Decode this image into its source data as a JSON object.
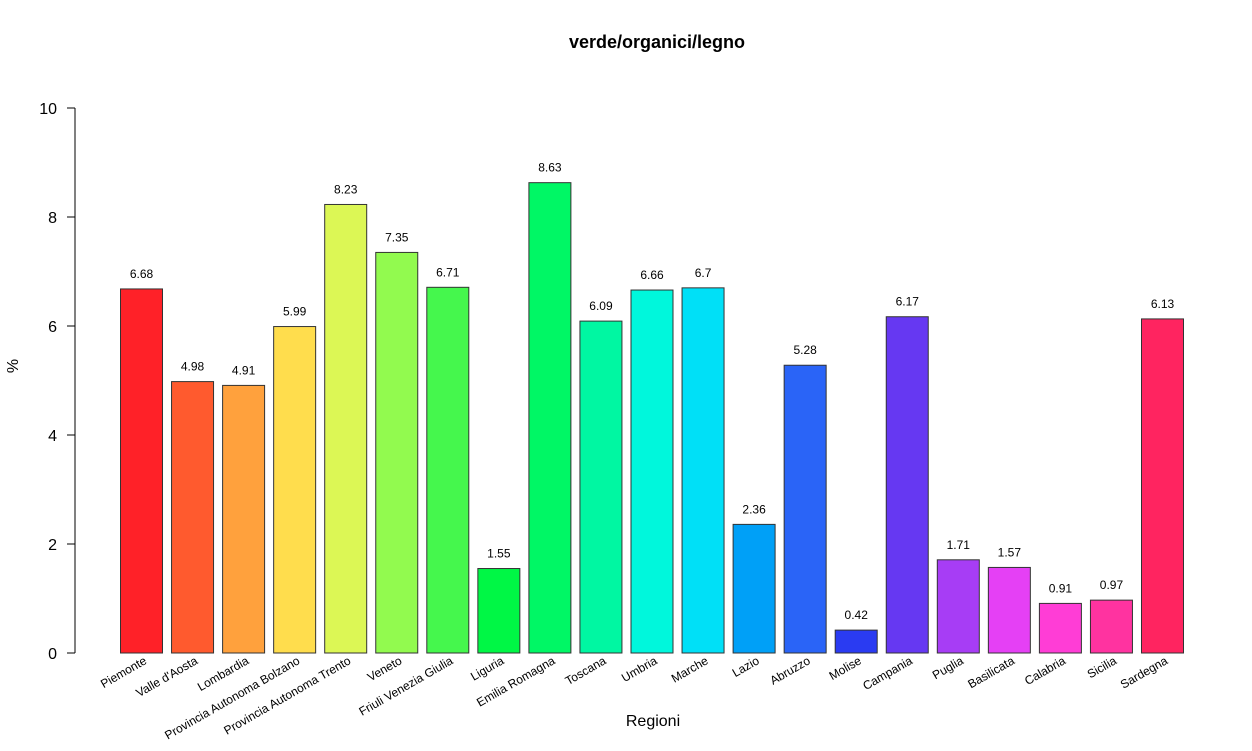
{
  "chart_data": {
    "type": "bar",
    "title": "verde/organici/legno",
    "xlabel": "Regioni",
    "ylabel": "%",
    "ylim": [
      0,
      10
    ],
    "yticks": [
      0,
      2,
      4,
      6,
      8,
      10
    ],
    "grid": false,
    "legend": "none",
    "categories": [
      "Piemonte",
      "Valle d'Aosta",
      "Lombardia",
      "Provincia Autonoma Bolzano",
      "Provincia Autonoma Trento",
      "Veneto",
      "Friuli Venezia Giulia",
      "Liguria",
      "Emilia Romagna",
      "Toscana",
      "Umbria",
      "Marche",
      "Lazio",
      "Abruzzo",
      "Molise",
      "Campania",
      "Puglia",
      "Basilicata",
      "Calabria",
      "Sicilia",
      "Sardegna"
    ],
    "values": [
      6.68,
      4.98,
      4.91,
      5.99,
      8.23,
      7.35,
      6.71,
      1.55,
      8.63,
      6.09,
      6.66,
      6.7,
      2.36,
      5.28,
      0.42,
      6.17,
      1.71,
      1.57,
      0.91,
      0.97,
      6.13
    ],
    "value_labels": [
      "6.68",
      "4.98",
      "4.91",
      "5.99",
      "8.23",
      "7.35",
      "6.71",
      "1.55",
      "8.63",
      "6.09",
      "6.66",
      "6.7",
      "2.36",
      "5.28",
      "0.42",
      "6.17",
      "1.71",
      "1.57",
      "0.91",
      "0.97",
      "6.13"
    ],
    "colors": [
      "#ff2128",
      "#ff5a2e",
      "#ffa13d",
      "#ffdd4d",
      "#dcf755",
      "#92fa4f",
      "#45f74d",
      "#00f745",
      "#00f765",
      "#00f7a2",
      "#00f7dc",
      "#00e0f7",
      "#00a0f7",
      "#2a64f7",
      "#2a3bf2",
      "#6638f2",
      "#a73df5",
      "#e540f5",
      "#ff3dd6",
      "#ff33a0",
      "#ff2460"
    ]
  }
}
